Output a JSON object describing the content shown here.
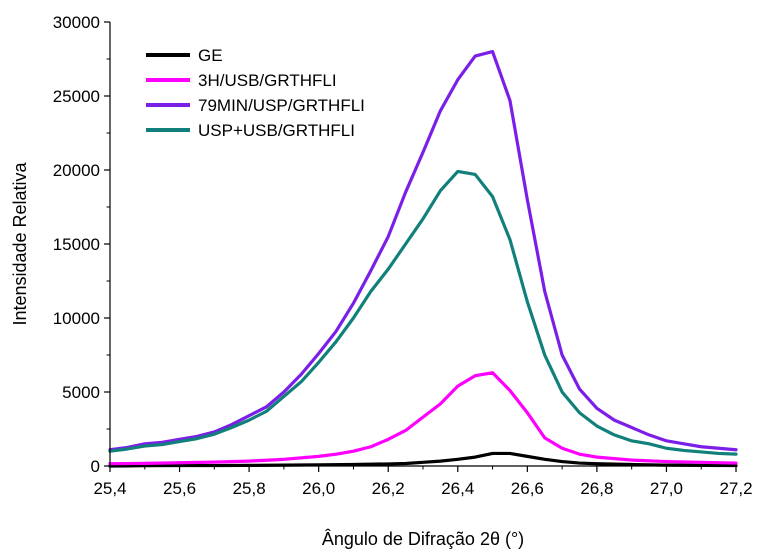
{
  "chart_data": {
    "type": "line",
    "xlabel": "Ângulo de Difração 2θ (°)",
    "ylabel": "Intensidade Relativa",
    "xlim": [
      25.4,
      27.2
    ],
    "ylim": [
      0,
      30000
    ],
    "x_ticks": [
      "25,4",
      "25,6",
      "25,8",
      "26,0",
      "26,2",
      "26,4",
      "26,6",
      "26,8",
      "27,0",
      "27,2"
    ],
    "y_ticks": [
      "0",
      "5000",
      "10000",
      "15000",
      "20000",
      "25000",
      "30000"
    ],
    "x_tick_values": [
      25.4,
      25.6,
      25.8,
      26.0,
      26.2,
      26.4,
      26.6,
      26.8,
      27.0,
      27.2
    ],
    "y_tick_values": [
      0,
      5000,
      10000,
      15000,
      20000,
      25000,
      30000
    ],
    "grid": false,
    "legend_position": "top-left",
    "series": [
      {
        "name": "GE",
        "color": "#000000",
        "x": [
          25.4,
          25.5,
          25.6,
          25.7,
          25.8,
          25.9,
          26.0,
          26.1,
          26.2,
          26.25,
          26.3,
          26.35,
          26.4,
          26.45,
          26.5,
          26.55,
          26.6,
          26.65,
          26.7,
          26.75,
          26.8,
          26.9,
          27.0,
          27.1,
          27.2
        ],
        "y": [
          0,
          20,
          30,
          30,
          40,
          60,
          80,
          100,
          140,
          170,
          250,
          330,
          450,
          600,
          850,
          850,
          650,
          450,
          300,
          200,
          150,
          100,
          60,
          40,
          30
        ]
      },
      {
        "name": "3H/USB/GRTHFLI",
        "color": "#ff00ff",
        "x": [
          25.4,
          25.5,
          25.6,
          25.7,
          25.8,
          25.9,
          26.0,
          26.05,
          26.1,
          26.15,
          26.2,
          26.25,
          26.3,
          26.35,
          26.4,
          26.45,
          26.5,
          26.55,
          26.6,
          26.65,
          26.7,
          26.75,
          26.8,
          26.9,
          27.0,
          27.1,
          27.2
        ],
        "y": [
          150,
          180,
          220,
          260,
          330,
          450,
          650,
          800,
          1000,
          1300,
          1800,
          2400,
          3300,
          4200,
          5400,
          6100,
          6300,
          5100,
          3600,
          1900,
          1200,
          800,
          600,
          400,
          300,
          250,
          200
        ]
      },
      {
        "name": "79MIN/USP/GRTHFLI",
        "color": "#7b1fe8",
        "x": [
          25.4,
          25.45,
          25.5,
          25.55,
          25.6,
          25.65,
          25.7,
          25.75,
          25.8,
          25.85,
          25.9,
          25.95,
          26.0,
          26.05,
          26.1,
          26.15,
          26.2,
          26.25,
          26.3,
          26.35,
          26.4,
          26.45,
          26.5,
          26.55,
          26.6,
          26.65,
          26.7,
          26.75,
          26.8,
          26.85,
          26.9,
          26.95,
          27.0,
          27.05,
          27.1,
          27.15,
          27.2
        ],
        "y": [
          1100,
          1250,
          1500,
          1600,
          1800,
          2000,
          2300,
          2800,
          3400,
          4000,
          5000,
          6200,
          7600,
          9100,
          11000,
          13200,
          15500,
          18500,
          21200,
          24000,
          26100,
          27700,
          28000,
          24700,
          18000,
          11800,
          7500,
          5200,
          3900,
          3100,
          2600,
          2100,
          1700,
          1500,
          1300,
          1200,
          1100
        ]
      },
      {
        "name": "USP+USB/GRTHFLI",
        "color": "#11807a",
        "x": [
          25.4,
          25.45,
          25.5,
          25.55,
          25.6,
          25.65,
          25.7,
          25.75,
          25.8,
          25.85,
          25.9,
          25.95,
          26.0,
          26.05,
          26.1,
          26.15,
          26.2,
          26.25,
          26.3,
          26.35,
          26.4,
          26.45,
          26.5,
          26.55,
          26.6,
          26.65,
          26.7,
          26.75,
          26.8,
          26.85,
          26.9,
          26.95,
          27.0,
          27.05,
          27.1,
          27.15,
          27.2
        ],
        "y": [
          1000,
          1150,
          1350,
          1450,
          1650,
          1850,
          2150,
          2600,
          3100,
          3700,
          4700,
          5700,
          7000,
          8400,
          10000,
          11800,
          13300,
          15000,
          16700,
          18600,
          19900,
          19700,
          18200,
          15300,
          11100,
          7500,
          5000,
          3600,
          2700,
          2100,
          1700,
          1500,
          1200,
          1050,
          950,
          850,
          800
        ]
      }
    ]
  }
}
